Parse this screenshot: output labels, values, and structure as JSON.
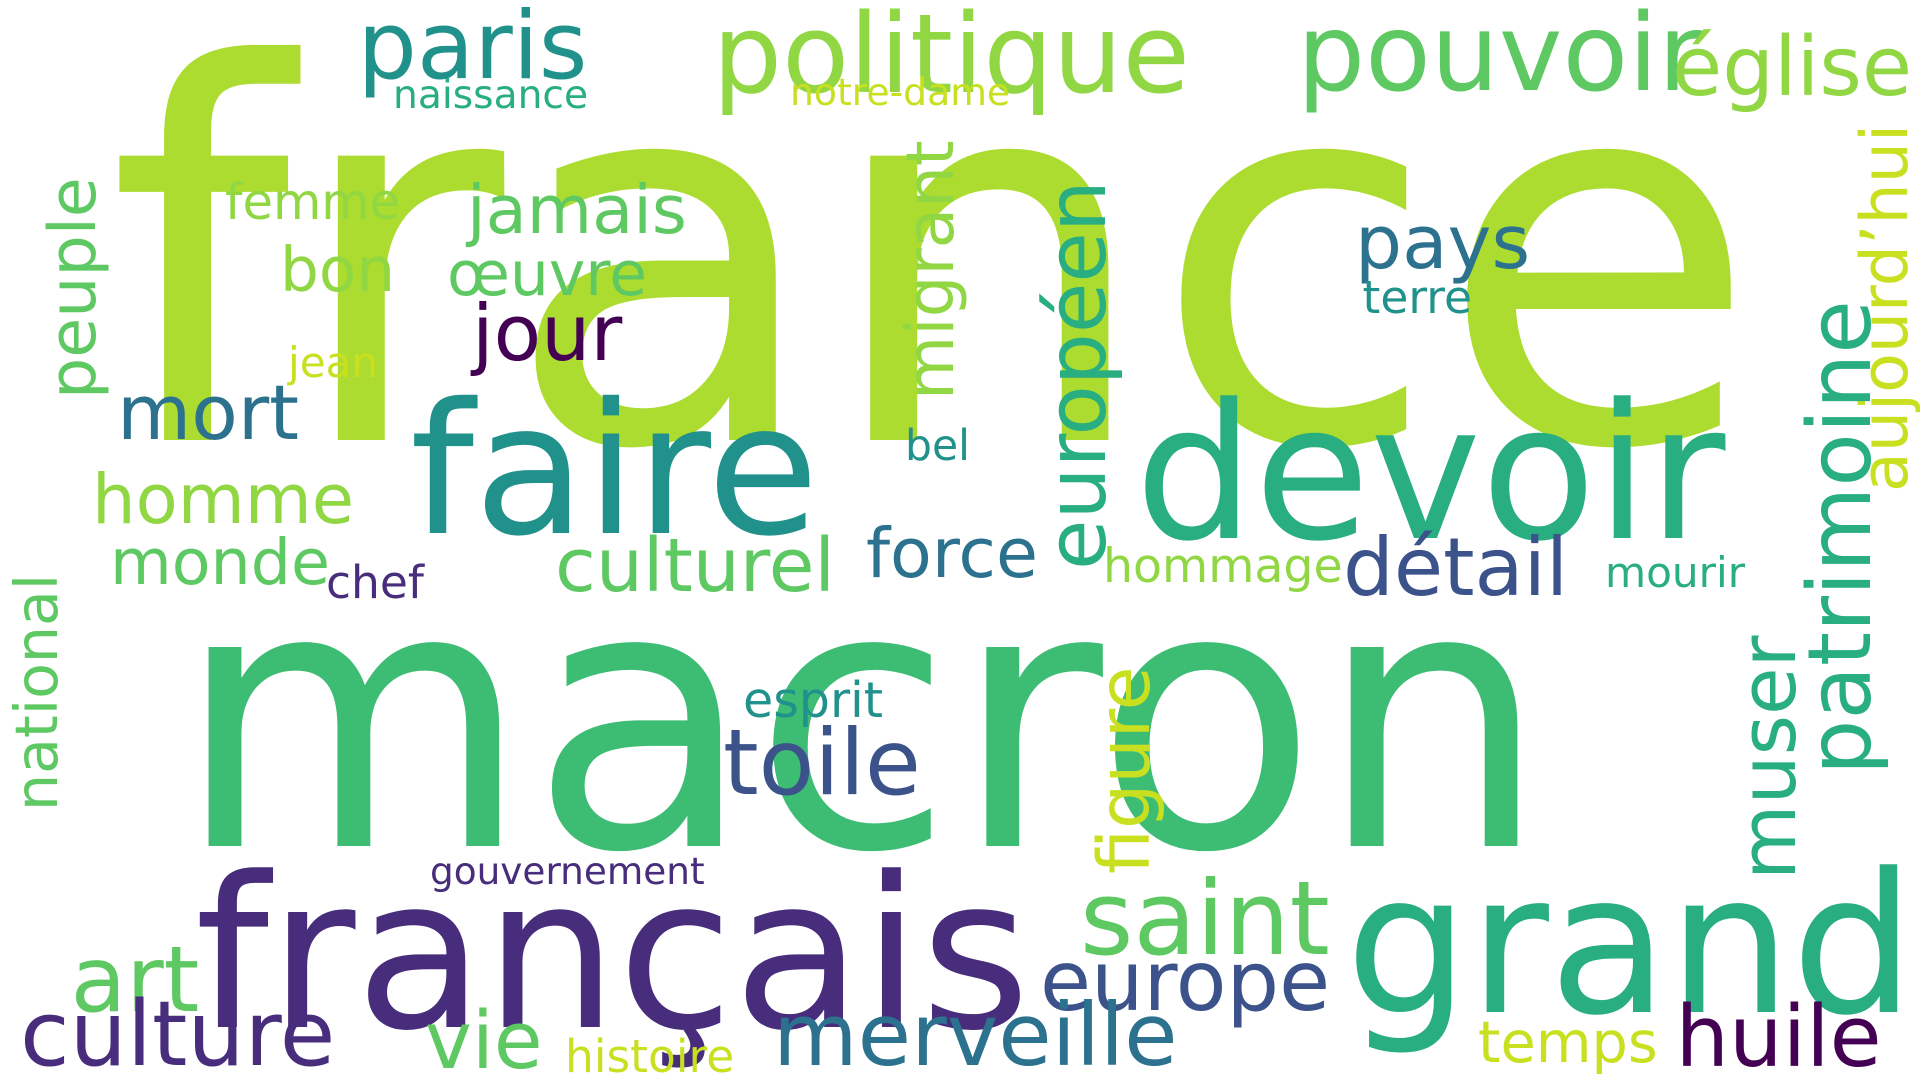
{
  "palette": {
    "lime": "#addc30",
    "yellow_green": "#c8e020",
    "light_green": "#90d743",
    "green": "#5ec962",
    "emerald": "#3dbc74",
    "teal_green": "#28ae80",
    "teal": "#21918c",
    "steel_teal": "#2c728e",
    "slate_blue": "#3b528b",
    "indigo": "#472d7b",
    "dark_purple": "#440154"
  },
  "words": [
    {
      "id": "france",
      "text": "france"
    },
    {
      "id": "macron",
      "text": "macron"
    },
    {
      "id": "faire",
      "text": "faire"
    },
    {
      "id": "devoir",
      "text": "devoir"
    },
    {
      "id": "francais",
      "text": "français"
    },
    {
      "id": "grand",
      "text": "grand"
    },
    {
      "id": "paris",
      "text": "paris"
    },
    {
      "id": "politique",
      "text": "politique"
    },
    {
      "id": "pouvoir",
      "text": "pouvoir"
    },
    {
      "id": "eglise",
      "text": "église"
    },
    {
      "id": "naissance",
      "text": "naissance"
    },
    {
      "id": "notre-dame",
      "text": "notre-dame"
    },
    {
      "id": "peuple",
      "text": "peuple"
    },
    {
      "id": "femme",
      "text": "femme"
    },
    {
      "id": "jamais",
      "text": "jamais"
    },
    {
      "id": "migrant",
      "text": "migrant"
    },
    {
      "id": "europeen",
      "text": "européen"
    },
    {
      "id": "pays",
      "text": "pays"
    },
    {
      "id": "aujourdhui",
      "text": "aujourd’hui"
    },
    {
      "id": "bon",
      "text": "bon"
    },
    {
      "id": "oeuvre",
      "text": "œuvre"
    },
    {
      "id": "terre",
      "text": "terre"
    },
    {
      "id": "jour",
      "text": "jour"
    },
    {
      "id": "patrimoine",
      "text": "patrimoine"
    },
    {
      "id": "jean",
      "text": "jean"
    },
    {
      "id": "mort",
      "text": "mort"
    },
    {
      "id": "bel",
      "text": "bel"
    },
    {
      "id": "homme",
      "text": "homme"
    },
    {
      "id": "monde",
      "text": "monde"
    },
    {
      "id": "force",
      "text": "force"
    },
    {
      "id": "culturel",
      "text": "culturel"
    },
    {
      "id": "hommage",
      "text": "hommage"
    },
    {
      "id": "detail",
      "text": "détail"
    },
    {
      "id": "chef",
      "text": "chef"
    },
    {
      "id": "mourir",
      "text": "mourir"
    },
    {
      "id": "national",
      "text": "national"
    },
    {
      "id": "muser",
      "text": "muser"
    },
    {
      "id": "esprit",
      "text": "esprit"
    },
    {
      "id": "figure",
      "text": "figure"
    },
    {
      "id": "toile",
      "text": "toile"
    },
    {
      "id": "gouvernement",
      "text": "gouvernement"
    },
    {
      "id": "saint",
      "text": "saint"
    },
    {
      "id": "art",
      "text": "art"
    },
    {
      "id": "europe",
      "text": "europe"
    },
    {
      "id": "culture",
      "text": "culture"
    },
    {
      "id": "vie",
      "text": "vie"
    },
    {
      "id": "merveille",
      "text": "merveille"
    },
    {
      "id": "temps",
      "text": "temps"
    },
    {
      "id": "huile",
      "text": "huile"
    },
    {
      "id": "histoire",
      "text": "histoire"
    }
  ]
}
